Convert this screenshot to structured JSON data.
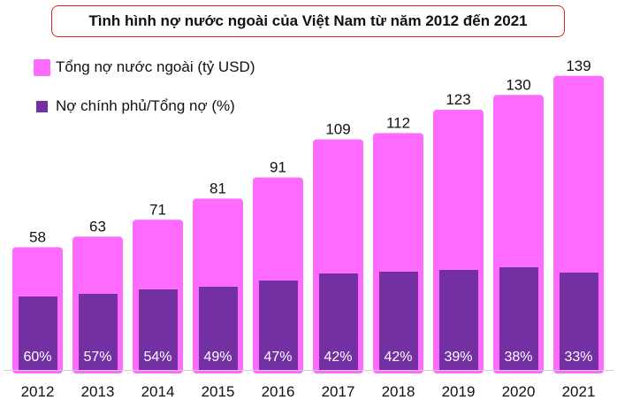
{
  "title": "Tình hình nợ nước ngoài của Việt Nam từ năm 2012 đến 2021",
  "legend": {
    "total_label": "Tổng nợ nước ngoài (tỷ USD)",
    "share_label": "Nợ chính phủ/Tổng nợ (%)"
  },
  "colors": {
    "total": "#ff6bff",
    "share": "#7330a3",
    "title_border": "#d9261c"
  },
  "chart_data": {
    "type": "bar",
    "title": "Tình hình nợ nước ngoài của Việt Nam từ năm 2012 đến 2021",
    "categories": [
      "2012",
      "2013",
      "2014",
      "2015",
      "2016",
      "2017",
      "2018",
      "2019",
      "2020",
      "2021"
    ],
    "series": [
      {
        "name": "Tổng nợ nước ngoài (tỷ USD)",
        "values": [
          58,
          63,
          71,
          81,
          91,
          109,
          112,
          123,
          130,
          139
        ],
        "labels": [
          "58",
          "63",
          "71",
          "81",
          "91",
          "109",
          "112",
          "123",
          "130",
          "139"
        ]
      },
      {
        "name": "Nợ chính phủ/Tổng nợ (%)",
        "values": [
          60,
          57,
          54,
          49,
          47,
          42,
          42,
          39,
          38,
          33
        ],
        "labels": [
          "60%",
          "57%",
          "54%",
          "49%",
          "47%",
          "42%",
          "42%",
          "39%",
          "38%",
          "33%"
        ],
        "bar_heights": [
          35,
          36,
          38,
          39,
          41,
          46,
          47,
          48,
          50,
          46
        ]
      }
    ],
    "xlabel": "",
    "ylabel": "",
    "grid": false,
    "legend_position": "top-left"
  }
}
